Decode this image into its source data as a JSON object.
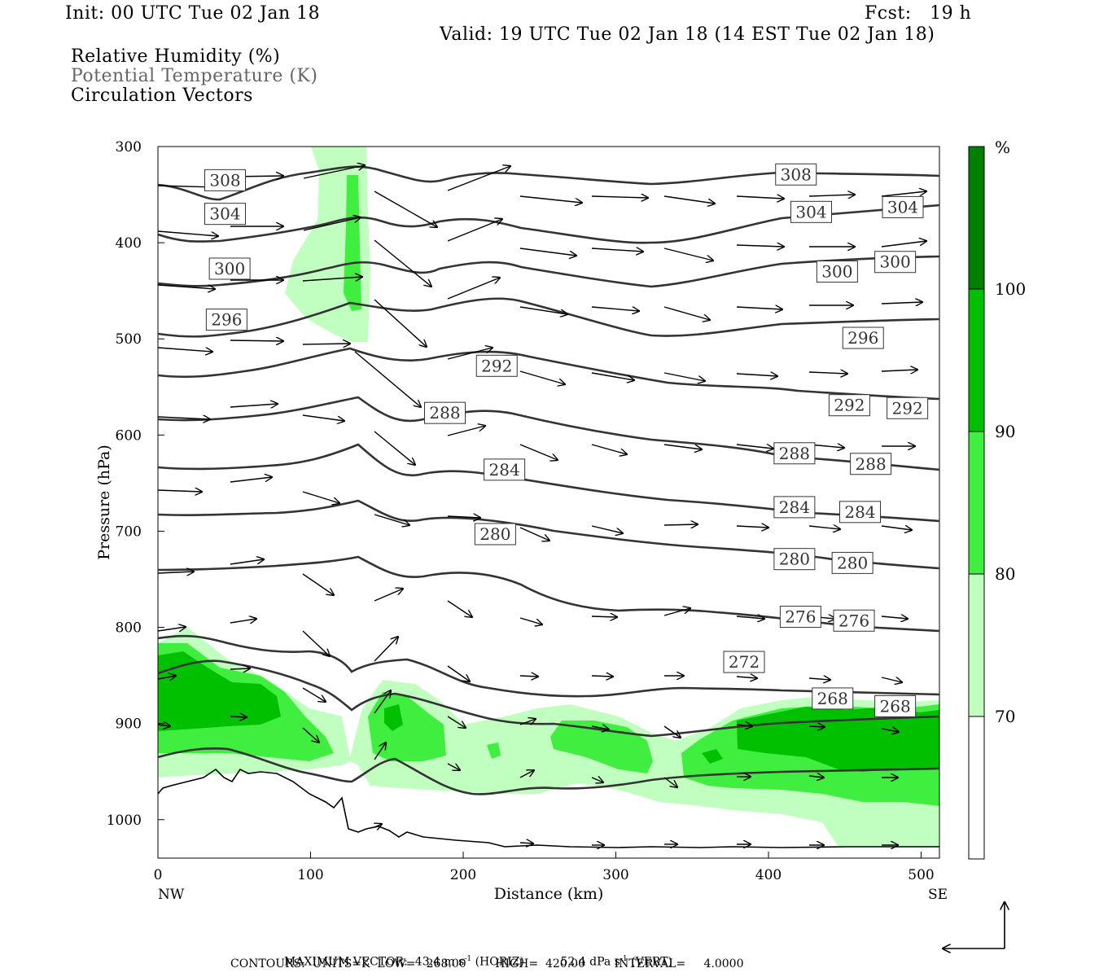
{
  "header": {
    "init": "Init: 00 UTC Tue 02 Jan 18",
    "fcst": "Fcst:   19 h",
    "valid": "Valid: 19 UTC Tue 02 Jan 18 (14 EST Tue 02 Jan 18)",
    "legend_rh": "Relative Humidity (%)",
    "legend_theta": "Potential Temperature (K)",
    "legend_vec": "Circulation Vectors"
  },
  "footer": {
    "max_vector_label": "MAXIMUM VECTOR:",
    "horiz_value": "43.4 m s",
    "horiz_unit": "(HORIZ)",
    "vert_value": "52.4 dPa s",
    "vert_unit": "(VERT)",
    "exponent": "-1",
    "contours": "CONTOURS:  UNITS=K  LOW=   268.00        HIGH=  420.00        INTERVAL=     4.0000"
  },
  "colors": {
    "rh_70": "#c0ffc0",
    "rh_80": "#40ee40",
    "rh_90": "#00c000",
    "rh_100": "#008000",
    "contour": "#333333",
    "terrain": "#000000"
  },
  "chart_data": {
    "type": "cross-section",
    "xlabel": "Distance (km)",
    "ylabel": "Pressure (hPa)",
    "xlim": [
      0,
      512
    ],
    "ylim": [
      1040,
      300
    ],
    "x_ticks": [
      "0",
      "100",
      "200",
      "300",
      "400",
      "500"
    ],
    "y_ticks": [
      "300",
      "400",
      "500",
      "600",
      "700",
      "800",
      "900",
      "1000"
    ],
    "x_end_labels": {
      "left": "NW",
      "right": "SE"
    },
    "colorbar": {
      "unit": "%",
      "levels": [
        "100",
        "90",
        "80",
        "70"
      ]
    },
    "theta_labels": [
      {
        "text": "308",
        "x": 44,
        "p": 335
      },
      {
        "text": "308",
        "x": 418,
        "p": 329
      },
      {
        "text": "304",
        "x": 44,
        "p": 370
      },
      {
        "text": "304",
        "x": 428,
        "p": 368
      },
      {
        "text": "304",
        "x": 488,
        "p": 363
      },
      {
        "text": "300",
        "x": 47,
        "p": 427
      },
      {
        "text": "300",
        "x": 445,
        "p": 430
      },
      {
        "text": "300",
        "x": 483,
        "p": 420
      },
      {
        "text": "296",
        "x": 45,
        "p": 480
      },
      {
        "text": "296",
        "x": 462,
        "p": 499
      },
      {
        "text": "292",
        "x": 222,
        "p": 528
      },
      {
        "text": "292",
        "x": 453,
        "p": 569
      },
      {
        "text": "292",
        "x": 491,
        "p": 572
      },
      {
        "text": "288",
        "x": 188,
        "p": 577
      },
      {
        "text": "288",
        "x": 417,
        "p": 619
      },
      {
        "text": "288",
        "x": 467,
        "p": 630
      },
      {
        "text": "284",
        "x": 227,
        "p": 636
      },
      {
        "text": "284",
        "x": 417,
        "p": 675
      },
      {
        "text": "284",
        "x": 460,
        "p": 680
      },
      {
        "text": "280",
        "x": 221,
        "p": 703
      },
      {
        "text": "280",
        "x": 417,
        "p": 729
      },
      {
        "text": "280",
        "x": 455,
        "p": 733
      },
      {
        "text": "276",
        "x": 421,
        "p": 789
      },
      {
        "text": "276",
        "x": 456,
        "p": 793
      },
      {
        "text": "272",
        "x": 384,
        "p": 836
      },
      {
        "text": "268",
        "x": 442,
        "p": 874
      },
      {
        "text": "268",
        "x": 483,
        "p": 882
      }
    ],
    "max_vector_horiz_m_s": 43.4,
    "max_vector_vert_dPa_s": 52.4,
    "contour_low_K": 268.0,
    "contour_high_K": 420.0,
    "contour_interval_K": 4.0
  }
}
